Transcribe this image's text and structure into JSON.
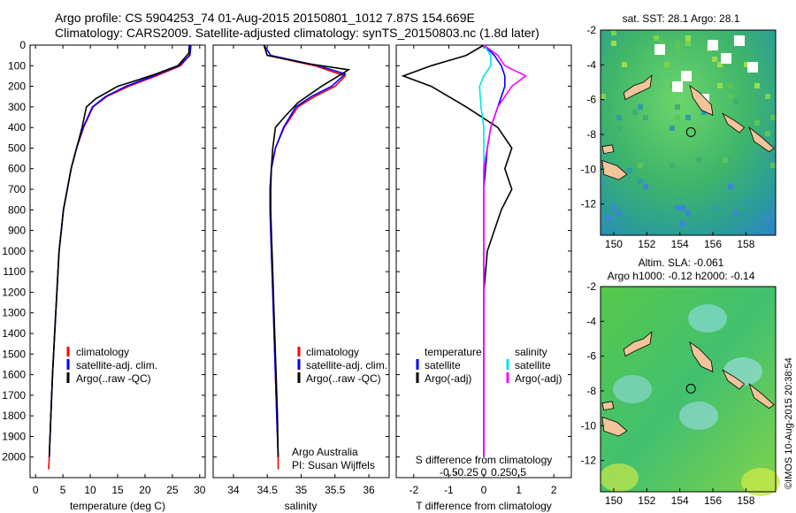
{
  "header": {
    "line1": "Argo profile: CS 5904253_74 01-Aug-2015 20150801_1012 7.87S 154.669E",
    "line2": "Climatology: CARS2009. Satellite-adjusted climatology: synTS_20150803.nc (1.8d later)"
  },
  "side_stamp": "©IMOS 10-Aug-2015 20:38:54",
  "colors": {
    "climatology": "#ff0000",
    "satellite": "#0000ff",
    "argo": "#000000",
    "satellite_salinity": "#00e5e5",
    "argo_salinity": "#ff00ff",
    "land": "#f2c49a"
  },
  "chart_data": [
    {
      "type": "line",
      "id": "temperature",
      "xlabel": "temperature (deg C)",
      "ylabel": "",
      "xlim": [
        -1,
        31
      ],
      "ylim": [
        2100,
        0
      ],
      "xticks": [
        0,
        5,
        10,
        15,
        20,
        25,
        30
      ],
      "yticks": [
        0,
        100,
        200,
        300,
        400,
        500,
        600,
        700,
        800,
        900,
        1000,
        1100,
        1200,
        1300,
        1400,
        1500,
        1600,
        1700,
        1800,
        1900,
        2000
      ],
      "legend": [
        "climatology",
        "satellite-adj. clim.",
        "Argo(..raw -QC)"
      ],
      "series": [
        {
          "name": "climatology",
          "points": [
            [
              28.2,
              0
            ],
            [
              28.1,
              50
            ],
            [
              26.5,
              100
            ],
            [
              22,
              150
            ],
            [
              17,
              200
            ],
            [
              13,
              250
            ],
            [
              10.5,
              300
            ],
            [
              8.8,
              400
            ],
            [
              7.5,
              500
            ],
            [
              6.5,
              600
            ],
            [
              5.8,
              700
            ],
            [
              5.1,
              800
            ],
            [
              4.7,
              900
            ],
            [
              4.3,
              1000
            ],
            [
              3.9,
              1200
            ],
            [
              3.5,
              1400
            ],
            [
              3.1,
              1600
            ],
            [
              2.8,
              1800
            ],
            [
              2.5,
              2000
            ],
            [
              2.4,
              2060
            ]
          ]
        },
        {
          "name": "satellite-adj. clim.",
          "points": [
            [
              28.4,
              0
            ],
            [
              28.2,
              50
            ],
            [
              26.2,
              100
            ],
            [
              21.5,
              150
            ],
            [
              16.5,
              200
            ],
            [
              12.8,
              250
            ],
            [
              10.4,
              300
            ],
            [
              8.7,
              400
            ],
            [
              7.5,
              500
            ],
            [
              6.5,
              600
            ],
            [
              5.8,
              700
            ],
            [
              5.1,
              800
            ],
            [
              4.7,
              900
            ],
            [
              4.3,
              1000
            ],
            [
              3.9,
              1200
            ],
            [
              3.5,
              1400
            ],
            [
              3.1,
              1600
            ],
            [
              2.8,
              1800
            ],
            [
              2.5,
              2000
            ]
          ]
        },
        {
          "name": "Argo(..raw -QC)",
          "points": [
            [
              28.1,
              0
            ],
            [
              28,
              40
            ],
            [
              26,
              100
            ],
            [
              22,
              140
            ],
            [
              18,
              175
            ],
            [
              15,
              200
            ],
            [
              11,
              260
            ],
            [
              9.3,
              300
            ],
            [
              8.5,
              400
            ],
            [
              7.5,
              500
            ],
            [
              6.5,
              600
            ],
            [
              5.8,
              700
            ],
            [
              5.1,
              800
            ],
            [
              4.7,
              900
            ],
            [
              4.3,
              1000
            ],
            [
              3.9,
              1200
            ],
            [
              3.5,
              1400
            ],
            [
              3.1,
              1600
            ],
            [
              2.8,
              1800
            ],
            [
              2.5,
              2000
            ]
          ]
        }
      ]
    },
    {
      "type": "line",
      "id": "salinity",
      "xlabel": "salinity",
      "xlim": [
        33.7,
        36.3
      ],
      "ylim": [
        2100,
        0
      ],
      "xticks": [
        34,
        34.5,
        35,
        35.5,
        36
      ],
      "xticklabels": [
        "34",
        "34.5",
        "35",
        "35.5",
        "36"
      ],
      "legend": [
        "climatology",
        "satellite-adj. clim.",
        "Argo(..raw -QC)"
      ],
      "annotation": [
        "Argo Australia",
        "PI: Susan Wijffels"
      ],
      "series": [
        {
          "name": "climatology",
          "points": [
            [
              34.45,
              0
            ],
            [
              34.5,
              50
            ],
            [
              35.2,
              100
            ],
            [
              35.65,
              150
            ],
            [
              35.5,
              200
            ],
            [
              35.2,
              250
            ],
            [
              34.95,
              300
            ],
            [
              34.75,
              400
            ],
            [
              34.62,
              500
            ],
            [
              34.56,
              600
            ],
            [
              34.54,
              700
            ],
            [
              34.54,
              800
            ],
            [
              34.55,
              900
            ],
            [
              34.56,
              1000
            ],
            [
              34.58,
              1200
            ],
            [
              34.6,
              1400
            ],
            [
              34.62,
              1600
            ],
            [
              34.64,
              1800
            ],
            [
              34.66,
              2000
            ],
            [
              34.66,
              2060
            ]
          ]
        },
        {
          "name": "satellite-adj. clim.",
          "points": [
            [
              34.45,
              0
            ],
            [
              34.55,
              50
            ],
            [
              35.25,
              100
            ],
            [
              35.65,
              140
            ],
            [
              35.45,
              200
            ],
            [
              35.15,
              250
            ],
            [
              34.92,
              300
            ],
            [
              34.74,
              400
            ],
            [
              34.62,
              500
            ],
            [
              34.56,
              600
            ],
            [
              34.54,
              700
            ],
            [
              34.54,
              800
            ],
            [
              34.55,
              900
            ],
            [
              34.56,
              1000
            ],
            [
              34.58,
              1200
            ],
            [
              34.6,
              1400
            ],
            [
              34.62,
              1600
            ],
            [
              34.64,
              1800
            ],
            [
              34.66,
              2000
            ]
          ]
        },
        {
          "name": "Argo(..raw -QC)",
          "points": [
            [
              34.45,
              0
            ],
            [
              34.5,
              50
            ],
            [
              35.1,
              90
            ],
            [
              35.7,
              120
            ],
            [
              35.55,
              150
            ],
            [
              35.3,
              200
            ],
            [
              34.95,
              280
            ],
            [
              34.75,
              350
            ],
            [
              34.62,
              400
            ],
            [
              34.58,
              500
            ],
            [
              34.56,
              600
            ],
            [
              34.55,
              700
            ],
            [
              34.55,
              800
            ],
            [
              34.56,
              900
            ],
            [
              34.57,
              1000
            ],
            [
              34.59,
              1200
            ],
            [
              34.61,
              1400
            ],
            [
              34.63,
              1600
            ],
            [
              34.65,
              1800
            ],
            [
              34.66,
              2000
            ]
          ]
        }
      ]
    },
    {
      "type": "line",
      "id": "difference",
      "xlabel": "T difference from climatology",
      "xlabel_top": "S difference from climatology",
      "xlim": [
        -2.5,
        2.5
      ],
      "ylim": [
        2100,
        0
      ],
      "xticks": [
        -2,
        -1,
        0,
        1,
        2
      ],
      "s_ticks": [
        -0.5,
        -0.25,
        0,
        0.25,
        0.5
      ],
      "s_ticklabels": [
        "-0.5",
        "-0.25",
        "0",
        "0.25",
        "0.5"
      ],
      "legend_temperature": [
        "temperature",
        "satellite",
        "Argo(-adj)"
      ],
      "legend_salinity": [
        "salinity",
        "satellite",
        "Argo(-adj)"
      ],
      "series": [
        {
          "name": "satellite",
          "quantity": "temperature",
          "points": [
            [
              0,
              0
            ],
            [
              0.3,
              50
            ],
            [
              0.5,
              100
            ],
            [
              0.6,
              150
            ],
            [
              0.6,
              200
            ],
            [
              0.4,
              300
            ],
            [
              0.2,
              400
            ],
            [
              0.1,
              500
            ],
            [
              0.05,
              600
            ],
            [
              0,
              700
            ],
            [
              0,
              1000
            ],
            [
              0,
              2000
            ]
          ]
        },
        {
          "name": "Argo(-adj)",
          "quantity": "temperature",
          "points": [
            [
              0,
              0
            ],
            [
              -0.5,
              50
            ],
            [
              -1.5,
              100
            ],
            [
              -2.3,
              150
            ],
            [
              -1.5,
              200
            ],
            [
              -0.5,
              300
            ],
            [
              0.4,
              400
            ],
            [
              0.8,
              500
            ],
            [
              0.6,
              600
            ],
            [
              0.8,
              700
            ],
            [
              0.5,
              800
            ],
            [
              0.3,
              900
            ],
            [
              0.1,
              1000
            ],
            [
              0,
              1200
            ],
            [
              0,
              1600
            ],
            [
              0,
              2000
            ]
          ]
        },
        {
          "name": "satellite",
          "quantity": "salinity",
          "points": [
            [
              0,
              0
            ],
            [
              0.05,
              50
            ],
            [
              0.05,
              100
            ],
            [
              0,
              150
            ],
            [
              -0.03,
              200
            ],
            [
              -0.02,
              300
            ],
            [
              0,
              400
            ],
            [
              0,
              1000
            ],
            [
              0,
              2000
            ]
          ]
        },
        {
          "name": "Argo(-adj)",
          "quantity": "salinity",
          "points": [
            [
              0,
              0
            ],
            [
              0.1,
              50
            ],
            [
              0.15,
              100
            ],
            [
              0.3,
              150
            ],
            [
              0.2,
              200
            ],
            [
              0.1,
              300
            ],
            [
              0.05,
              400
            ],
            [
              0,
              600
            ],
            [
              0,
              1000
            ],
            [
              0,
              2000
            ]
          ]
        }
      ]
    },
    {
      "type": "heatmap",
      "id": "sst-map",
      "title": "sat. SST: 28.1 Argo: 28.1",
      "xlim": [
        149.2,
        159.8
      ],
      "ylim": [
        -13.8,
        -2
      ],
      "xticks": [
        150,
        152,
        154,
        156,
        158
      ],
      "yticks": [
        -2,
        -4,
        -6,
        -8,
        -10,
        -12
      ],
      "marker": {
        "lon": 154.669,
        "lat": -7.87
      }
    },
    {
      "type": "heatmap",
      "id": "sla-map",
      "title_line1": "Altim. SLA: -0.061",
      "title_line2": "Argo h1000: -0.12 h2000: -0.14",
      "xlim": [
        149.2,
        159.8
      ],
      "ylim": [
        -13.8,
        -2
      ],
      "xticks": [
        150,
        152,
        154,
        156,
        158
      ],
      "yticks": [
        -2,
        -4,
        -6,
        -8,
        -10,
        -12
      ],
      "marker": {
        "lon": 154.669,
        "lat": -7.87
      }
    }
  ]
}
